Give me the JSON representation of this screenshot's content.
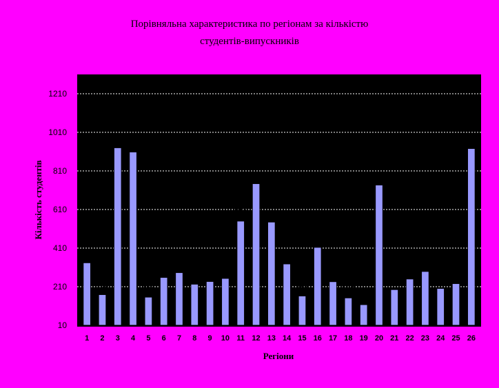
{
  "chart_data": {
    "type": "bar",
    "title": "Порівняльна характеристика по  регіонам за кількістю",
    "subtitle": "студентів-випускників",
    "xlabel": "Регіони",
    "ylabel": "Кількість студентів",
    "categories": [
      "1",
      "2",
      "3",
      "4",
      "5",
      "6",
      "7",
      "8",
      "9",
      "10",
      "11",
      "12",
      "13",
      "14",
      "15",
      "16",
      "17",
      "18",
      "19",
      "20",
      "21",
      "22",
      "23",
      "24",
      "25",
      "26"
    ],
    "values": [
      334,
      169,
      930,
      908,
      156,
      258,
      283,
      223,
      237,
      253,
      550,
      744,
      545,
      328,
      162,
      414,
      236,
      152,
      117,
      737,
      195,
      250,
      289,
      201,
      226,
      926
    ],
    "data_labels": [
      "334",
      "169",
      "930",
      "908",
      "156",
      "258",
      "283",
      "223",
      "237",
      "253",
      "550",
      "744",
      "545",
      "328",
      "162",
      "414",
      "236",
      "152",
      "117",
      "737",
      "195",
      "250",
      "289",
      "201",
      "226",
      "926"
    ],
    "yticks": [
      10,
      210,
      410,
      610,
      810,
      1010,
      1210
    ],
    "ytick_labels": [
      "10",
      "210",
      "410",
      "610",
      "810",
      "1010",
      "1210"
    ],
    "ylim": [
      10,
      1210
    ],
    "grid": true,
    "colors": {
      "background": "#ff00ff",
      "plot_area": "#000000",
      "bar": "#9999ff",
      "bar_border": "#000000",
      "gridline": "#ffffff"
    }
  }
}
